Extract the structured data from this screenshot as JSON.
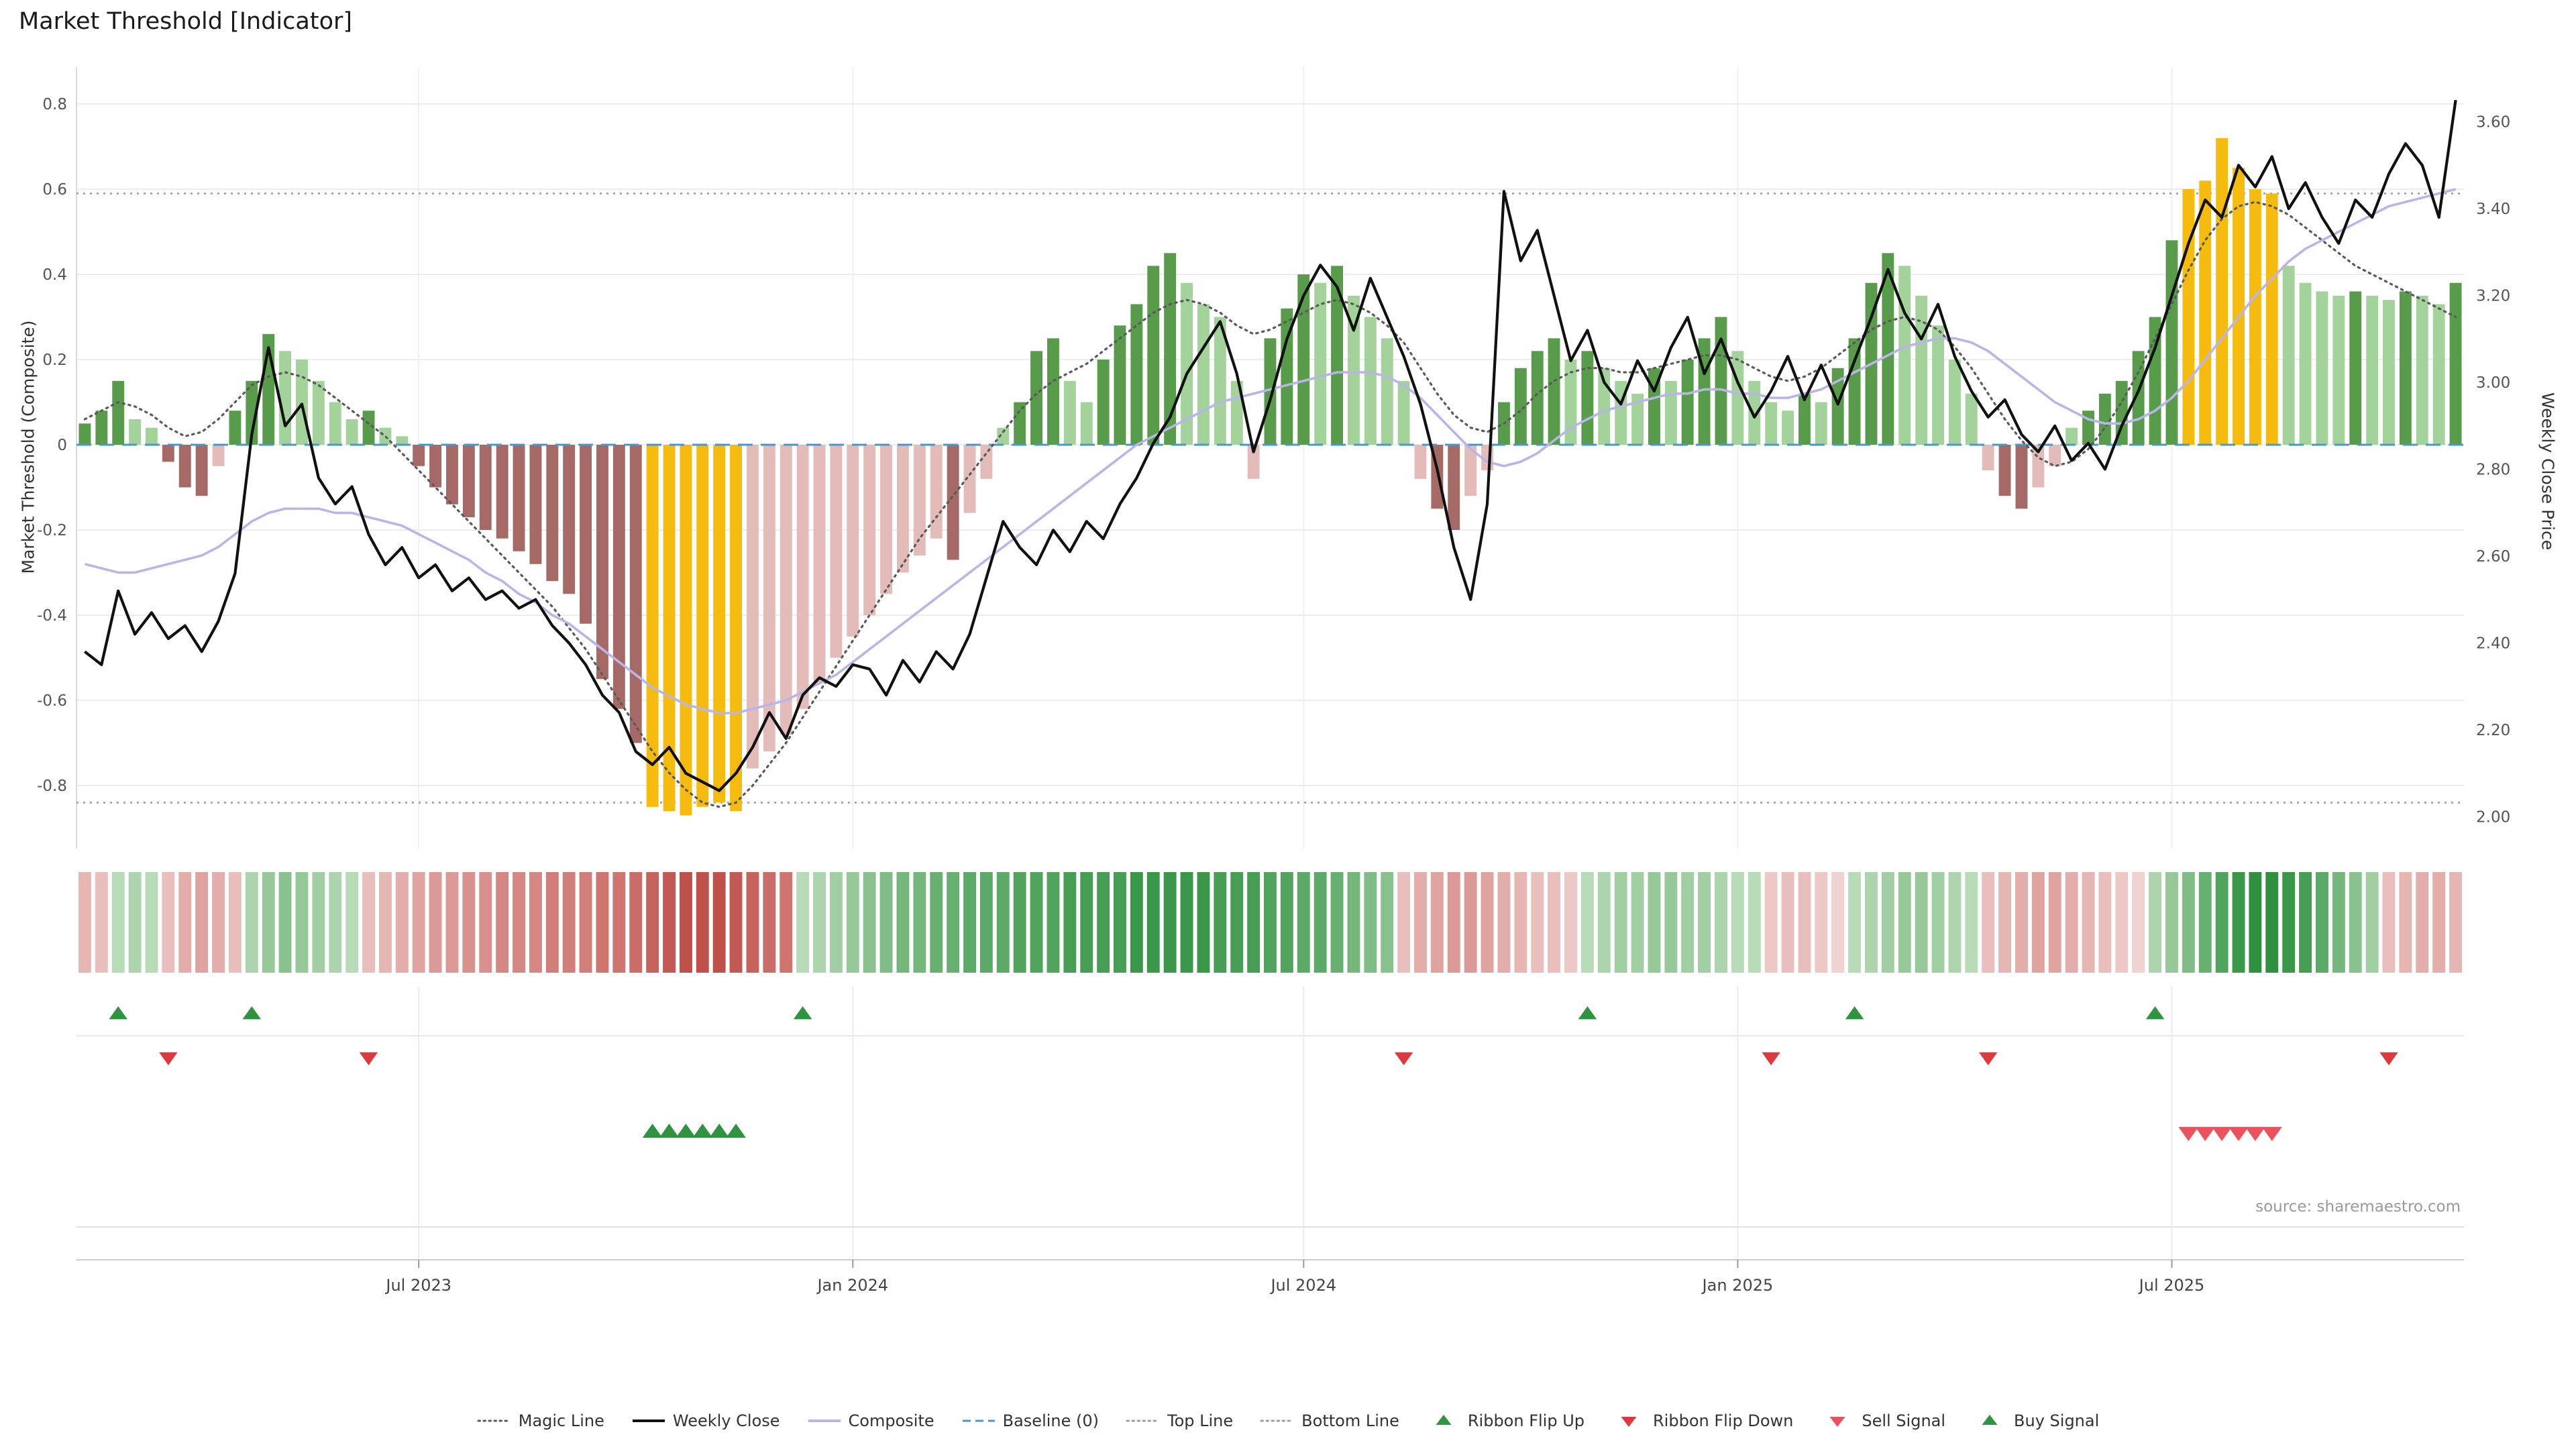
{
  "source_note": "source: sharemaestro.com",
  "colors": {
    "bar_green_dark": "#579b4b",
    "bar_green_light": "#a3d39a",
    "bar_red_dark": "#a66a66",
    "bar_red_light": "#e3bcba",
    "bar_extreme": "#f5bb0e",
    "weekly_close": "#111111",
    "composite": "#b9b5e6",
    "magic_line": "#5a5a5a",
    "baseline": "#4d96c8",
    "top_bottom_line": "#9e9e9e",
    "ribbon_green_light": "#cfe7cb",
    "ribbon_green_dark": "#2f9140",
    "ribbon_red_light": "#f0d2d0",
    "ribbon_red_dark": "#c0504a",
    "signal_green": "#2e9440",
    "signal_red": "#dd3a3f",
    "sell_red": "#e8535e"
  },
  "legend": {
    "items": [
      {
        "label": "Magic Line",
        "type": "dotted-dark"
      },
      {
        "label": "Weekly Close",
        "type": "solid-black"
      },
      {
        "label": "Composite",
        "type": "solid-purple"
      },
      {
        "label": "Baseline (0)",
        "type": "dashed-blue"
      },
      {
        "label": "Top Line",
        "type": "dotted-gray"
      },
      {
        "label": "Bottom Line",
        "type": "dotted-gray"
      },
      {
        "label": "Ribbon Flip Up",
        "type": "tri-up-green"
      },
      {
        "label": "Ribbon Flip Down",
        "type": "tri-down-red"
      },
      {
        "label": "Sell Signal",
        "type": "tri-down-sell"
      },
      {
        "label": "Buy Signal",
        "type": "tri-up-buy"
      }
    ]
  },
  "chart_data": {
    "type": "bar+line",
    "title": "Market Threshold [Indicator]",
    "ylabel_left": "Market Threshold (Composite)",
    "ylabel_right": "Weekly Close Price",
    "x_unit": "weeks",
    "frequency": "weekly",
    "n_points": 143,
    "grid": true,
    "legend_position": "bottom",
    "ylim_left": [
      -0.95,
      0.9
    ],
    "ylim_right": [
      2.0,
      3.65
    ],
    "yticks_left": [
      0.8,
      0.6,
      0.4,
      0.2,
      0,
      -0.2,
      -0.4,
      -0.6,
      -0.8
    ],
    "yticks_right": [
      3.6,
      3.4,
      3.2,
      3.0,
      2.8,
      2.6,
      2.4,
      2.2,
      2.0
    ],
    "x_ticks": [
      {
        "week": 20,
        "label": "Jul 2023"
      },
      {
        "week": 46,
        "label": "Jan 2024"
      },
      {
        "week": 73,
        "label": "Jul 2024"
      },
      {
        "week": 99,
        "label": "Jan 2025"
      },
      {
        "week": 125,
        "label": "Jul 2025"
      }
    ],
    "reference_lines": {
      "baseline": 0,
      "top_line": 0.59,
      "bottom_line": -0.84
    },
    "signals": {
      "ribbon_flip_up_weeks": [
        2,
        10,
        43,
        90,
        106,
        124
      ],
      "ribbon_flip_down_weeks": [
        5,
        17,
        79,
        101,
        114,
        138
      ],
      "buy_signal_weeks": [
        34,
        35,
        36,
        37,
        38,
        39
      ],
      "sell_signal_weeks": [
        126,
        127,
        128,
        129,
        130,
        131
      ]
    },
    "series": [
      {
        "name": "Market Threshold",
        "axis": "left",
        "style": "bars",
        "values": [
          0.05,
          0.08,
          0.15,
          0.06,
          0.04,
          -0.04,
          -0.1,
          -0.12,
          -0.05,
          0.08,
          0.15,
          0.26,
          0.22,
          0.2,
          0.15,
          0.1,
          0.06,
          0.08,
          0.04,
          0.02,
          -0.05,
          -0.1,
          -0.14,
          -0.17,
          -0.2,
          -0.22,
          -0.25,
          -0.28,
          -0.32,
          -0.35,
          -0.42,
          -0.55,
          -0.62,
          -0.7,
          -0.85,
          -0.86,
          -0.87,
          -0.85,
          -0.84,
          -0.86,
          -0.76,
          -0.72,
          -0.68,
          -0.62,
          -0.56,
          -0.5,
          -0.45,
          -0.4,
          -0.35,
          -0.3,
          -0.26,
          -0.22,
          -0.27,
          -0.16,
          -0.08,
          0.04,
          0.1,
          0.22,
          0.25,
          0.15,
          0.1,
          0.2,
          0.28,
          0.33,
          0.42,
          0.45,
          0.38,
          0.33,
          0.3,
          0.15,
          -0.08,
          0.25,
          0.32,
          0.4,
          0.38,
          0.42,
          0.35,
          0.3,
          0.25,
          0.15,
          -0.08,
          -0.15,
          -0.2,
          -0.12,
          -0.06,
          0.1,
          0.18,
          0.22,
          0.25,
          0.2,
          0.22,
          0.18,
          0.15,
          0.12,
          0.18,
          0.15,
          0.2,
          0.25,
          0.3,
          0.22,
          0.15,
          0.1,
          0.08,
          0.12,
          0.1,
          0.18,
          0.25,
          0.38,
          0.45,
          0.42,
          0.35,
          0.28,
          0.2,
          0.12,
          -0.06,
          -0.12,
          -0.15,
          -0.1,
          -0.05,
          0.04,
          0.08,
          0.12,
          0.15,
          0.22,
          0.3,
          0.48,
          0.6,
          0.62,
          0.72,
          0.65,
          0.6,
          0.59,
          0.42,
          0.38,
          0.36,
          0.35,
          0.36,
          0.35,
          0.34,
          0.36,
          0.35,
          0.33,
          0.38
        ]
      },
      {
        "name": "Weekly Close",
        "axis": "right",
        "style": "line",
        "values": [
          2.38,
          2.35,
          2.52,
          2.42,
          2.47,
          2.41,
          2.44,
          2.38,
          2.45,
          2.56,
          2.88,
          3.08,
          2.9,
          2.95,
          2.78,
          2.72,
          2.76,
          2.65,
          2.58,
          2.62,
          2.55,
          2.58,
          2.52,
          2.55,
          2.5,
          2.52,
          2.48,
          2.5,
          2.44,
          2.4,
          2.35,
          2.28,
          2.24,
          2.15,
          2.12,
          2.16,
          2.1,
          2.08,
          2.06,
          2.1,
          2.16,
          2.24,
          2.18,
          2.28,
          2.32,
          2.3,
          2.35,
          2.34,
          2.28,
          2.36,
          2.31,
          2.38,
          2.34,
          2.42,
          2.55,
          2.68,
          2.62,
          2.58,
          2.66,
          2.61,
          2.68,
          2.64,
          2.72,
          2.78,
          2.86,
          2.92,
          3.02,
          3.08,
          3.14,
          3.02,
          2.84,
          2.96,
          3.1,
          3.2,
          3.27,
          3.22,
          3.12,
          3.24,
          3.15,
          3.06,
          2.95,
          2.8,
          2.62,
          2.5,
          2.72,
          3.44,
          3.28,
          3.35,
          3.2,
          3.05,
          3.12,
          3.0,
          2.95,
          3.05,
          2.98,
          3.08,
          3.15,
          3.02,
          3.1,
          3.0,
          2.92,
          2.98,
          3.06,
          2.96,
          3.04,
          2.95,
          3.05,
          3.15,
          3.26,
          3.16,
          3.1,
          3.18,
          3.06,
          2.98,
          2.92,
          2.96,
          2.88,
          2.84,
          2.9,
          2.82,
          2.86,
          2.8,
          2.9,
          2.98,
          3.08,
          3.2,
          3.32,
          3.42,
          3.38,
          3.5,
          3.45,
          3.52,
          3.4,
          3.46,
          3.38,
          3.32,
          3.42,
          3.38,
          3.48,
          3.55,
          3.5,
          3.38,
          3.65
        ]
      },
      {
        "name": "Composite",
        "axis": "left",
        "style": "line",
        "values": [
          -0.28,
          -0.29,
          -0.3,
          -0.3,
          -0.29,
          -0.28,
          -0.27,
          -0.26,
          -0.24,
          -0.21,
          -0.18,
          -0.16,
          -0.15,
          -0.15,
          -0.15,
          -0.16,
          -0.16,
          -0.17,
          -0.18,
          -0.19,
          -0.21,
          -0.23,
          -0.25,
          -0.27,
          -0.3,
          -0.32,
          -0.35,
          -0.37,
          -0.4,
          -0.42,
          -0.45,
          -0.48,
          -0.51,
          -0.54,
          -0.57,
          -0.59,
          -0.61,
          -0.62,
          -0.63,
          -0.63,
          -0.62,
          -0.61,
          -0.6,
          -0.58,
          -0.56,
          -0.54,
          -0.51,
          -0.48,
          -0.45,
          -0.42,
          -0.39,
          -0.36,
          -0.33,
          -0.3,
          -0.27,
          -0.24,
          -0.21,
          -0.18,
          -0.15,
          -0.12,
          -0.09,
          -0.06,
          -0.03,
          0.0,
          0.02,
          0.04,
          0.06,
          0.08,
          0.1,
          0.11,
          0.12,
          0.13,
          0.14,
          0.15,
          0.16,
          0.17,
          0.17,
          0.17,
          0.16,
          0.14,
          0.11,
          0.07,
          0.03,
          -0.01,
          -0.04,
          -0.05,
          -0.04,
          -0.02,
          0.01,
          0.04,
          0.06,
          0.08,
          0.09,
          0.1,
          0.11,
          0.12,
          0.12,
          0.13,
          0.13,
          0.12,
          0.12,
          0.11,
          0.11,
          0.12,
          0.13,
          0.15,
          0.17,
          0.19,
          0.21,
          0.23,
          0.24,
          0.25,
          0.25,
          0.24,
          0.22,
          0.19,
          0.16,
          0.13,
          0.1,
          0.08,
          0.06,
          0.05,
          0.05,
          0.06,
          0.08,
          0.11,
          0.15,
          0.2,
          0.25,
          0.3,
          0.35,
          0.39,
          0.43,
          0.46,
          0.48,
          0.5,
          0.52,
          0.54,
          0.56,
          0.57,
          0.58,
          0.59,
          0.6
        ]
      },
      {
        "name": "Magic Line",
        "axis": "left",
        "style": "dotted-line",
        "values": [
          0.06,
          0.08,
          0.1,
          0.09,
          0.07,
          0.04,
          0.02,
          0.03,
          0.06,
          0.1,
          0.14,
          0.16,
          0.17,
          0.16,
          0.14,
          0.11,
          0.08,
          0.05,
          0.02,
          -0.02,
          -0.06,
          -0.1,
          -0.14,
          -0.18,
          -0.22,
          -0.26,
          -0.3,
          -0.34,
          -0.38,
          -0.43,
          -0.48,
          -0.54,
          -0.6,
          -0.66,
          -0.72,
          -0.77,
          -0.81,
          -0.84,
          -0.85,
          -0.84,
          -0.8,
          -0.75,
          -0.7,
          -0.64,
          -0.58,
          -0.52,
          -0.46,
          -0.4,
          -0.34,
          -0.28,
          -0.22,
          -0.17,
          -0.12,
          -0.07,
          -0.02,
          0.03,
          0.08,
          0.12,
          0.15,
          0.17,
          0.19,
          0.22,
          0.25,
          0.28,
          0.31,
          0.33,
          0.34,
          0.33,
          0.31,
          0.28,
          0.26,
          0.27,
          0.29,
          0.31,
          0.33,
          0.34,
          0.33,
          0.31,
          0.28,
          0.24,
          0.18,
          0.12,
          0.07,
          0.04,
          0.03,
          0.05,
          0.08,
          0.12,
          0.15,
          0.17,
          0.18,
          0.18,
          0.17,
          0.17,
          0.18,
          0.19,
          0.2,
          0.21,
          0.21,
          0.2,
          0.18,
          0.16,
          0.15,
          0.16,
          0.18,
          0.21,
          0.24,
          0.27,
          0.29,
          0.3,
          0.29,
          0.27,
          0.23,
          0.18,
          0.12,
          0.06,
          0.01,
          -0.03,
          -0.05,
          -0.04,
          -0.01,
          0.04,
          0.1,
          0.17,
          0.25,
          0.33,
          0.41,
          0.48,
          0.53,
          0.56,
          0.57,
          0.56,
          0.54,
          0.51,
          0.48,
          0.45,
          0.42,
          0.4,
          0.38,
          0.36,
          0.34,
          0.32,
          0.3
        ]
      },
      {
        "name": "Ribbon",
        "axis": "none",
        "style": "heat-strip",
        "values": [
          -0.35,
          -0.3,
          0.3,
          0.35,
          0.3,
          -0.3,
          -0.4,
          -0.45,
          -0.4,
          -0.3,
          0.35,
          0.45,
          0.5,
          0.45,
          0.4,
          0.35,
          0.3,
          -0.3,
          -0.35,
          -0.4,
          -0.45,
          -0.5,
          -0.5,
          -0.55,
          -0.55,
          -0.6,
          -0.6,
          -0.6,
          -0.65,
          -0.65,
          -0.65,
          -0.7,
          -0.7,
          -0.75,
          -0.8,
          -0.85,
          -0.9,
          -0.9,
          -0.9,
          -0.85,
          -0.8,
          -0.75,
          -0.7,
          0.3,
          0.35,
          0.4,
          0.45,
          0.5,
          0.55,
          0.6,
          0.6,
          0.65,
          0.65,
          0.7,
          0.7,
          0.7,
          0.75,
          0.75,
          0.75,
          0.8,
          0.8,
          0.8,
          0.8,
          0.85,
          0.85,
          0.85,
          0.85,
          0.85,
          0.8,
          0.8,
          0.8,
          0.75,
          0.75,
          0.7,
          0.7,
          0.65,
          0.6,
          0.55,
          0.5,
          -0.3,
          -0.4,
          -0.45,
          -0.5,
          -0.5,
          -0.45,
          -0.4,
          -0.35,
          -0.3,
          -0.3,
          -0.25,
          0.3,
          0.35,
          0.4,
          0.4,
          0.45,
          0.45,
          0.4,
          0.4,
          0.35,
          0.3,
          0.3,
          -0.25,
          -0.3,
          -0.3,
          -0.25,
          -0.2,
          0.3,
          0.35,
          0.4,
          0.45,
          0.45,
          0.4,
          0.35,
          0.3,
          -0.3,
          -0.35,
          -0.4,
          -0.45,
          -0.45,
          -0.4,
          -0.35,
          -0.3,
          -0.25,
          -0.2,
          0.35,
          0.45,
          0.55,
          0.65,
          0.75,
          0.85,
          0.9,
          0.9,
          0.85,
          0.8,
          0.7,
          0.6,
          0.5,
          0.4,
          -0.3,
          -0.35,
          -0.4,
          -0.4,
          -0.35
        ]
      }
    ]
  }
}
